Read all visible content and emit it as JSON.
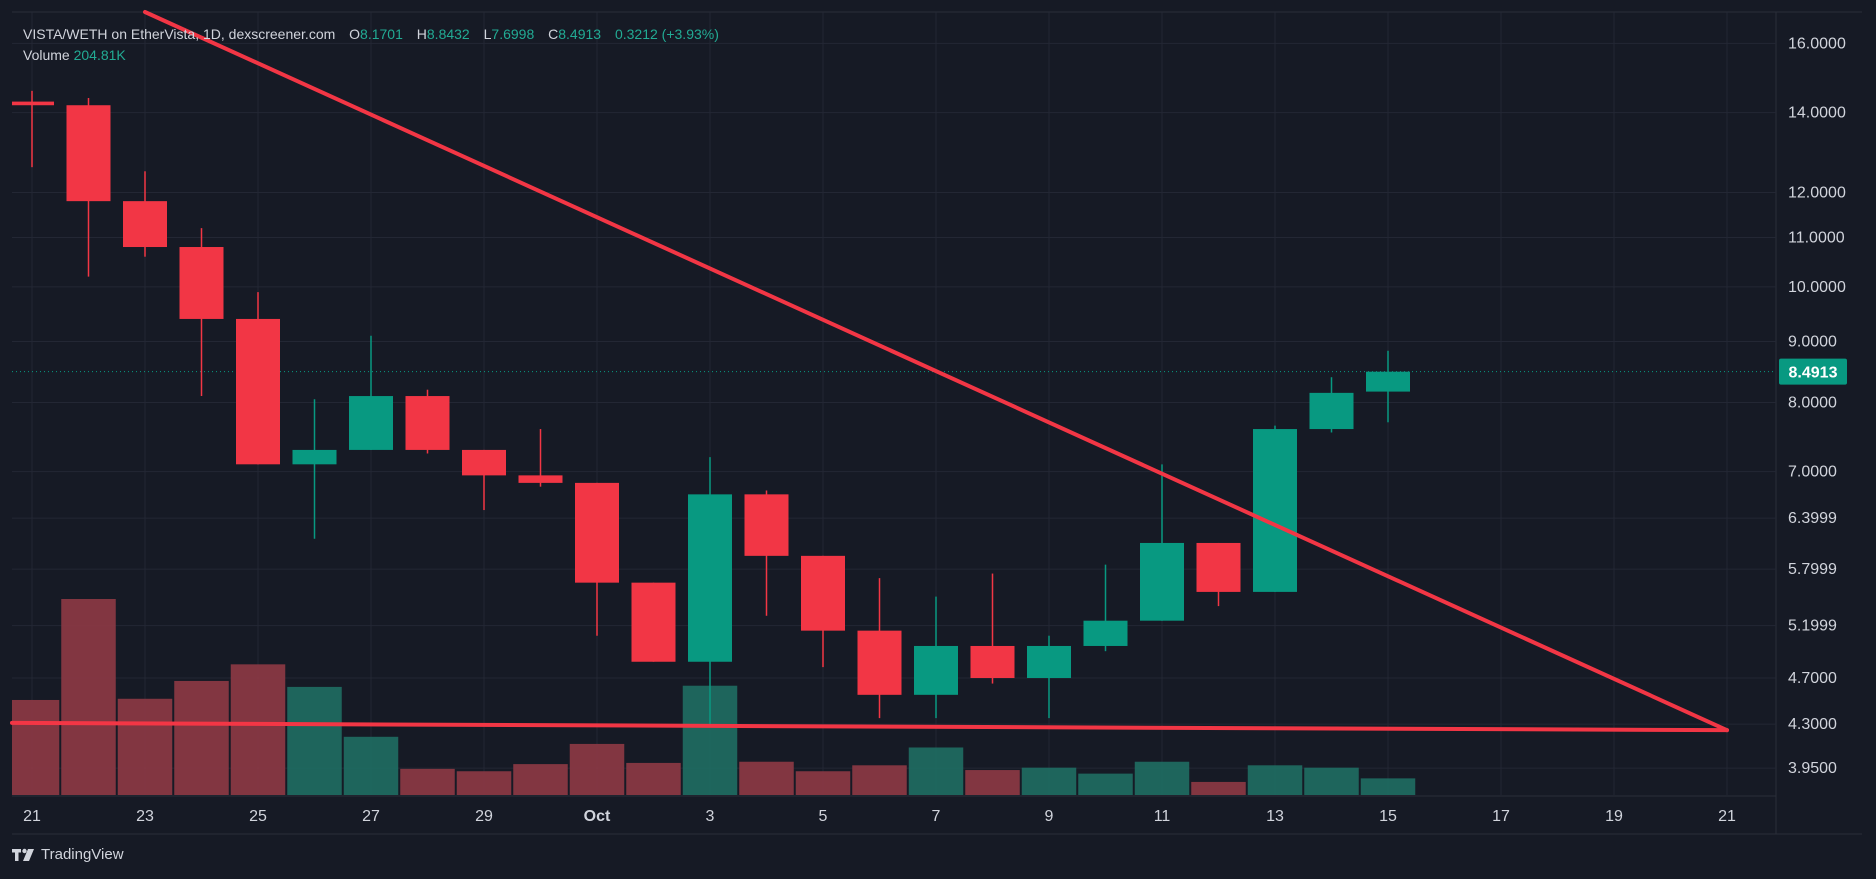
{
  "legend": {
    "symbol": "VISTA/WETH on EtherVista, 1D, dexscreener.com",
    "open_label": "O",
    "open": "8.1701",
    "high_label": "H",
    "high": "8.8432",
    "low_label": "L",
    "low": "7.6998",
    "close_label": "C",
    "close": "8.4913",
    "change": "0.3212 (+3.93%)",
    "volume_label": "Volume",
    "volume": "204.81K"
  },
  "brand": {
    "name": "TradingView"
  },
  "colors": {
    "background": "#161a25",
    "up": "#089981",
    "down": "#f23645",
    "up_volume": "#1f6e63",
    "down_volume": "#8e3a45",
    "trendline": "#f23645",
    "grid": "#232734",
    "text": "#d1d4dc",
    "price_tag": "#089981"
  },
  "chart_data": {
    "type": "candlestick",
    "title": "VISTA/WETH on EtherVista, 1D, dexscreener.com",
    "y_scale": "log",
    "ylim": [
      3.75,
      17.0
    ],
    "y_ticks": [
      "16.0000",
      "14.0000",
      "12.0000",
      "11.0000",
      "10.0000",
      "9.0000",
      "8.0000",
      "7.0000",
      "6.3999",
      "5.7999",
      "5.1999",
      "4.7000",
      "4.3000",
      "3.9500"
    ],
    "x_ticks": [
      {
        "day": 0,
        "label": "21"
      },
      {
        "day": 2,
        "label": "23"
      },
      {
        "day": 4,
        "label": "25"
      },
      {
        "day": 6,
        "label": "27"
      },
      {
        "day": 8,
        "label": "29"
      },
      {
        "day": 10,
        "label": "Oct"
      },
      {
        "day": 12,
        "label": "3"
      },
      {
        "day": 14,
        "label": "5"
      },
      {
        "day": 16,
        "label": "7"
      },
      {
        "day": 18,
        "label": "9"
      },
      {
        "day": 20,
        "label": "11"
      },
      {
        "day": 22,
        "label": "13"
      },
      {
        "day": 24,
        "label": "15"
      },
      {
        "day": 26,
        "label": "17"
      },
      {
        "day": 28,
        "label": "19"
      },
      {
        "day": 30,
        "label": "21"
      }
    ],
    "candles": [
      {
        "day": 0,
        "o": 14.3,
        "h": 14.6,
        "l": 12.6,
        "c": 14.2,
        "v": 80
      },
      {
        "day": 1,
        "o": 14.2,
        "h": 14.4,
        "l": 10.2,
        "c": 11.8,
        "v": 165
      },
      {
        "day": 2,
        "o": 11.8,
        "h": 12.5,
        "l": 10.6,
        "c": 10.8,
        "v": 81
      },
      {
        "day": 3,
        "o": 10.8,
        "h": 11.2,
        "l": 8.1,
        "c": 9.4,
        "v": 96
      },
      {
        "day": 4,
        "o": 9.4,
        "h": 9.9,
        "l": 7.1,
        "c": 7.1,
        "v": 110
      },
      {
        "day": 5,
        "o": 7.1,
        "h": 8.05,
        "l": 6.15,
        "c": 7.3,
        "v": 91
      },
      {
        "day": 6,
        "o": 7.3,
        "h": 9.1,
        "l": 7.3,
        "c": 8.1,
        "v": 49
      },
      {
        "day": 7,
        "o": 8.1,
        "h": 8.2,
        "l": 7.25,
        "c": 7.3,
        "v": 22
      },
      {
        "day": 8,
        "o": 7.3,
        "h": 7.3,
        "l": 6.5,
        "c": 6.95,
        "v": 20
      },
      {
        "day": 9,
        "o": 6.95,
        "h": 7.6,
        "l": 6.8,
        "c": 6.85,
        "v": 26
      },
      {
        "day": 10,
        "o": 6.85,
        "h": 6.85,
        "l": 5.1,
        "c": 5.65,
        "v": 43
      },
      {
        "day": 11,
        "o": 5.65,
        "h": 5.65,
        "l": 4.85,
        "c": 4.85,
        "v": 27
      },
      {
        "day": 12,
        "o": 4.85,
        "h": 7.2,
        "l": 4.3,
        "c": 6.7,
        "v": 92
      },
      {
        "day": 13,
        "o": 6.7,
        "h": 6.75,
        "l": 5.3,
        "c": 5.95,
        "v": 28
      },
      {
        "day": 14,
        "o": 5.95,
        "h": 5.95,
        "l": 4.8,
        "c": 5.15,
        "v": 20
      },
      {
        "day": 15,
        "o": 5.15,
        "h": 5.7,
        "l": 4.35,
        "c": 4.55,
        "v": 25
      },
      {
        "day": 16,
        "o": 4.55,
        "h": 5.5,
        "l": 4.35,
        "c": 5.0,
        "v": 40
      },
      {
        "day": 17,
        "o": 5.0,
        "h": 5.75,
        "l": 4.65,
        "c": 4.7,
        "v": 21
      },
      {
        "day": 18,
        "o": 4.7,
        "h": 5.1,
        "l": 4.35,
        "c": 5.0,
        "v": 23
      },
      {
        "day": 19,
        "o": 5.0,
        "h": 5.85,
        "l": 4.95,
        "c": 5.25,
        "v": 18
      },
      {
        "day": 20,
        "o": 5.25,
        "h": 7.1,
        "l": 5.25,
        "c": 6.1,
        "v": 28
      },
      {
        "day": 21,
        "o": 6.1,
        "h": 6.1,
        "l": 5.4,
        "c": 5.55,
        "v": 11
      },
      {
        "day": 22,
        "o": 5.55,
        "h": 7.65,
        "l": 5.55,
        "c": 7.6,
        "v": 25
      },
      {
        "day": 23,
        "o": 7.6,
        "h": 8.4,
        "l": 7.55,
        "c": 8.15,
        "v": 23
      },
      {
        "day": 24,
        "o": 8.17,
        "h": 8.84,
        "l": 7.7,
        "c": 8.49,
        "v": 14
      }
    ],
    "volume_max": 165,
    "last_price": "8.4913",
    "trendlines": [
      {
        "name": "descending-resistance",
        "from": {
          "day": 2,
          "price": 17.0
        },
        "to": {
          "day": 30,
          "price": 4.25
        }
      },
      {
        "name": "flat-support",
        "from": {
          "day": -0.4,
          "price": 4.31
        },
        "to": {
          "day": 30,
          "price": 4.25
        }
      }
    ]
  }
}
